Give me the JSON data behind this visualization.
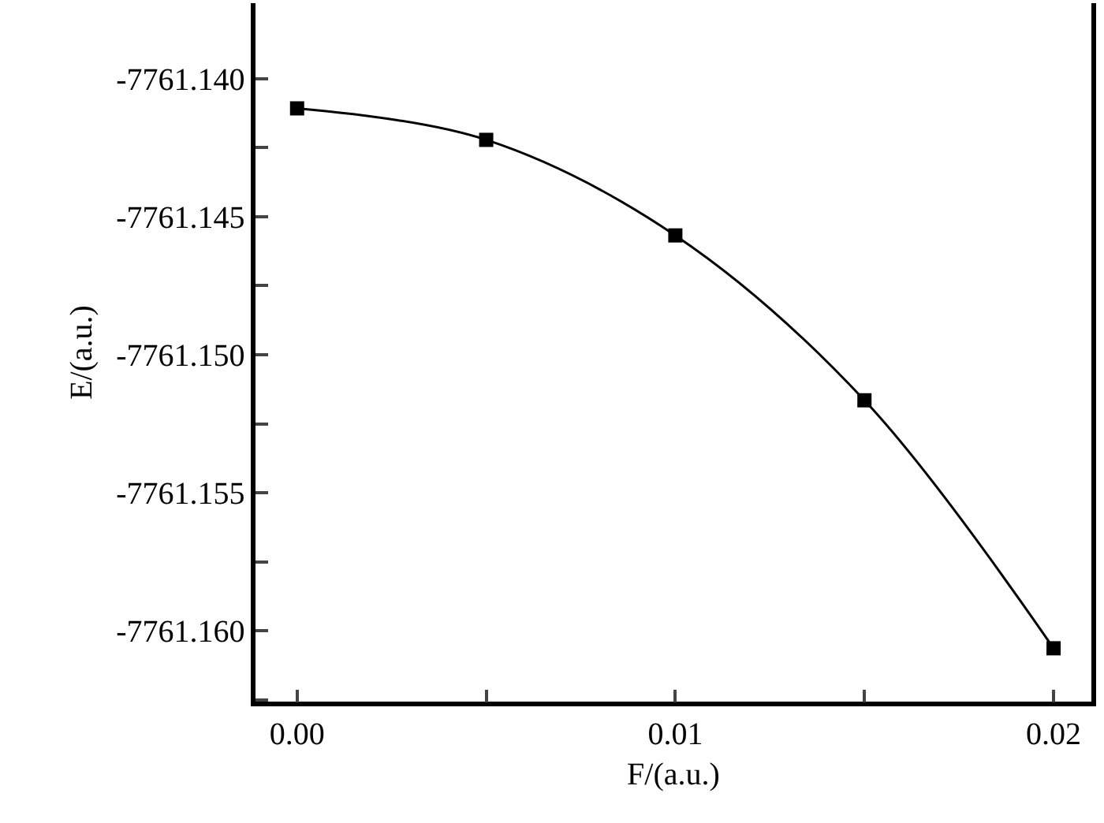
{
  "chart_data": {
    "type": "line",
    "xlabel": "F/(a.u.)",
    "ylabel": "E/(a.u.)",
    "x": [
      0,
      0.005,
      0.01,
      0.015,
      0.02
    ],
    "series": [
      {
        "color": "#000000",
        "values": [
          -7761.14108,
          -7761.14222,
          -7761.14568,
          -7761.15165,
          -7761.16063
        ]
      }
    ],
    "xlim": [
      -0.0011,
      0.021
    ],
    "xticks": [
      {
        "value": 0,
        "label": "0.00"
      },
      {
        "value": 0.005,
        "label": null
      },
      {
        "value": 0.01,
        "label": "0.01"
      },
      {
        "value": 0.015,
        "label": null
      },
      {
        "value": 0.02,
        "label": "0.02"
      }
    ],
    "ylim": [
      -7761.16256,
      -7761.13727
    ],
    "yticks": [
      {
        "value": -7761.14,
        "label": "-7761.140"
      },
      {
        "value": -7761.1425,
        "label": null
      },
      {
        "value": -7761.145,
        "label": "-7761.145"
      },
      {
        "value": -7761.1475,
        "label": null
      },
      {
        "value": -7761.15,
        "label": "-7761.150"
      },
      {
        "value": -7761.1525,
        "label": null
      },
      {
        "value": -7761.155,
        "label": "-7761.155"
      },
      {
        "value": -7761.1575,
        "label": null
      },
      {
        "value": -7761.16,
        "label": "-7761.160"
      },
      {
        "value": -7761.1625,
        "label": null
      }
    ],
    "marker": "square",
    "line_style": "solid"
  }
}
